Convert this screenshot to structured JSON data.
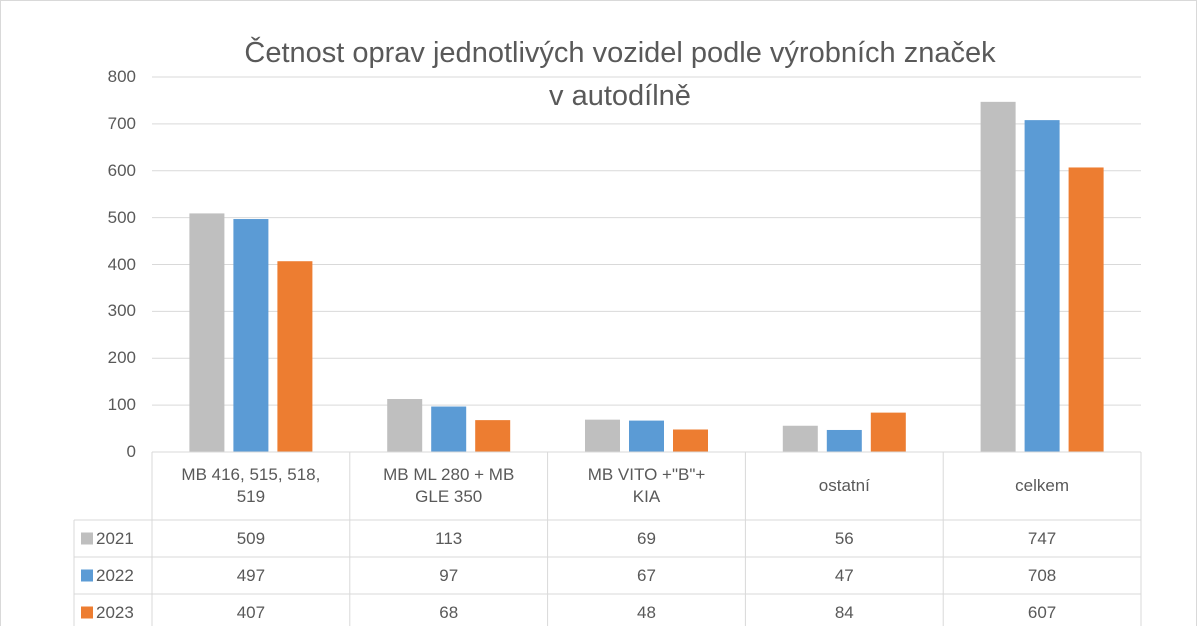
{
  "chart_data": {
    "type": "bar",
    "title": [
      "Četnost oprav jednotlivých vozidel podle výrobních značek",
      "v autodílně"
    ],
    "categories": [
      "MB 416, 515, 518,\n519",
      "MB ML 280 + MB\nGLE 350",
      "MB VITO +\"B\"+\nKIA",
      "ostatní",
      "celkem"
    ],
    "series": [
      {
        "name": "2021",
        "color": "#bfbfbf",
        "values": [
          509,
          113,
          69,
          56,
          747
        ]
      },
      {
        "name": "2022",
        "color": "#5b9bd5",
        "values": [
          497,
          97,
          67,
          47,
          708
        ]
      },
      {
        "name": "2023",
        "color": "#ed7d31",
        "values": [
          407,
          68,
          48,
          84,
          607
        ]
      }
    ],
    "ylim": [
      0,
      800
    ],
    "yticks": [
      0,
      100,
      200,
      300,
      400,
      500,
      600,
      700,
      800
    ],
    "grid": true,
    "data_table": true
  }
}
